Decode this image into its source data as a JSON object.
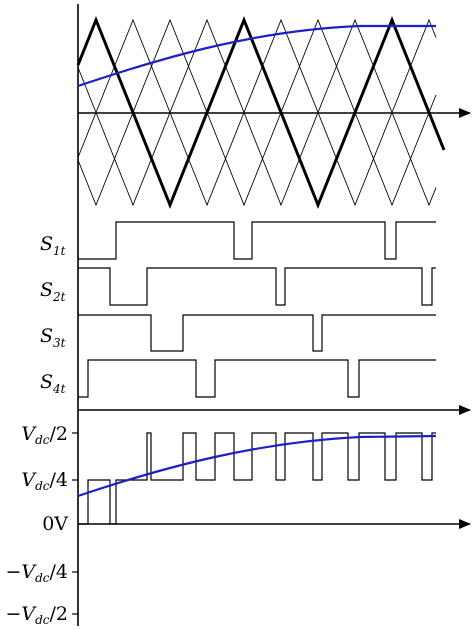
{
  "colors": {
    "ink": "#000000",
    "reference": "#1f1fc8"
  },
  "signals": {
    "s1": {
      "main": "S",
      "sub": "1t"
    },
    "s2": {
      "main": "S",
      "sub": "2t"
    },
    "s3": {
      "main": "S",
      "sub": "3t"
    },
    "s4": {
      "main": "S",
      "sub": "4t"
    }
  },
  "voltage_axis": {
    "pos_half": {
      "sign": "",
      "main": "V",
      "sub": "dc",
      "tail": "/2"
    },
    "pos_quarter": {
      "sign": "",
      "main": "V",
      "sub": "dc",
      "tail": "/4"
    },
    "zero": "0V",
    "neg_quarter": {
      "sign": "−",
      "main": "V",
      "sub": "dc",
      "tail": "/4"
    },
    "neg_half": {
      "sign": "−",
      "main": "V",
      "sub": "dc",
      "tail": "/2"
    }
  }
}
